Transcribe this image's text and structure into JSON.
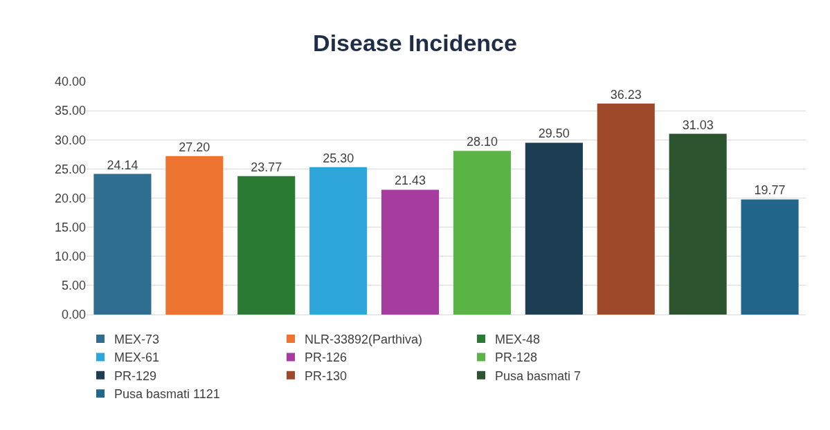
{
  "chart_data": {
    "type": "bar",
    "title": "Disease Incidence",
    "categories": [
      null,
      null,
      null,
      null,
      null,
      null,
      null,
      null,
      null,
      null
    ],
    "series": [
      {
        "name": "MEX-73",
        "color": "#2f6e8f",
        "values": [
          24.14,
          null,
          null,
          null,
          null,
          null,
          null,
          null,
          null,
          null
        ],
        "value_labels": [
          "24.14",
          null,
          null,
          null,
          null,
          null,
          null,
          null,
          null,
          null
        ]
      },
      {
        "name": "NLR-33892(Parthiva)",
        "color": "#ed7430",
        "values": [
          null,
          27.2,
          null,
          null,
          null,
          null,
          null,
          null,
          null,
          null
        ],
        "value_labels": [
          null,
          "27.20",
          null,
          null,
          null,
          null,
          null,
          null,
          null,
          null
        ]
      },
      {
        "name": "MEX-48",
        "color": "#2a7a33",
        "values": [
          null,
          null,
          23.77,
          null,
          null,
          null,
          null,
          null,
          null,
          null
        ],
        "value_labels": [
          null,
          null,
          "23.77",
          null,
          null,
          null,
          null,
          null,
          null,
          null
        ]
      },
      {
        "name": "MEX-61",
        "color": "#2ea6dc",
        "values": [
          null,
          null,
          null,
          25.3,
          null,
          null,
          null,
          null,
          null,
          null
        ],
        "value_labels": [
          null,
          null,
          null,
          "25.30",
          null,
          null,
          null,
          null,
          null,
          null
        ]
      },
      {
        "name": "PR-126",
        "color": "#a63ba0",
        "values": [
          null,
          null,
          null,
          null,
          21.43,
          null,
          null,
          null,
          null,
          null
        ],
        "value_labels": [
          null,
          null,
          null,
          null,
          "21.43",
          null,
          null,
          null,
          null,
          null
        ]
      },
      {
        "name": "PR-128",
        "color": "#5bb546",
        "values": [
          null,
          null,
          null,
          null,
          null,
          28.1,
          null,
          null,
          null,
          null
        ],
        "value_labels": [
          null,
          null,
          null,
          null,
          null,
          "28.10",
          null,
          null,
          null,
          null
        ]
      },
      {
        "name": "PR-129",
        "color": "#1d3d52",
        "values": [
          null,
          null,
          null,
          null,
          null,
          null,
          29.5,
          null,
          null,
          null
        ],
        "value_labels": [
          null,
          null,
          null,
          null,
          null,
          null,
          "29.50",
          null,
          null,
          null
        ]
      },
      {
        "name": "PR-130",
        "color": "#a0492a",
        "values": [
          null,
          null,
          null,
          null,
          null,
          null,
          null,
          36.23,
          null,
          null
        ],
        "value_labels": [
          null,
          null,
          null,
          null,
          null,
          null,
          null,
          "36.23",
          null,
          null
        ]
      },
      {
        "name": "Pusa basmati 7",
        "color": "#2c552f",
        "values": [
          null,
          null,
          null,
          null,
          null,
          null,
          null,
          null,
          31.03,
          null
        ],
        "value_labels": [
          null,
          null,
          null,
          null,
          null,
          null,
          null,
          null,
          "31.03",
          null
        ]
      },
      {
        "name": "Pusa basmati 1121",
        "color": "#22668c",
        "values": [
          null,
          null,
          null,
          null,
          null,
          null,
          null,
          null,
          null,
          19.77
        ],
        "value_labels": [
          null,
          null,
          null,
          null,
          null,
          null,
          null,
          null,
          null,
          "19.77"
        ]
      }
    ],
    "ylim": [
      0,
      40
    ],
    "yticks": [
      {
        "value": 0,
        "label": "0.00"
      },
      {
        "value": 5,
        "label": "5.00"
      },
      {
        "value": 10,
        "label": "10.00"
      },
      {
        "value": 15,
        "label": "15.00"
      },
      {
        "value": 20,
        "label": "20.00"
      },
      {
        "value": 25,
        "label": "25.00"
      },
      {
        "value": 30,
        "label": "30.00"
      },
      {
        "value": 35,
        "label": "35.00"
      },
      {
        "value": 40,
        "label": "40.00"
      }
    ],
    "grid": "y",
    "legend": "bottom"
  }
}
